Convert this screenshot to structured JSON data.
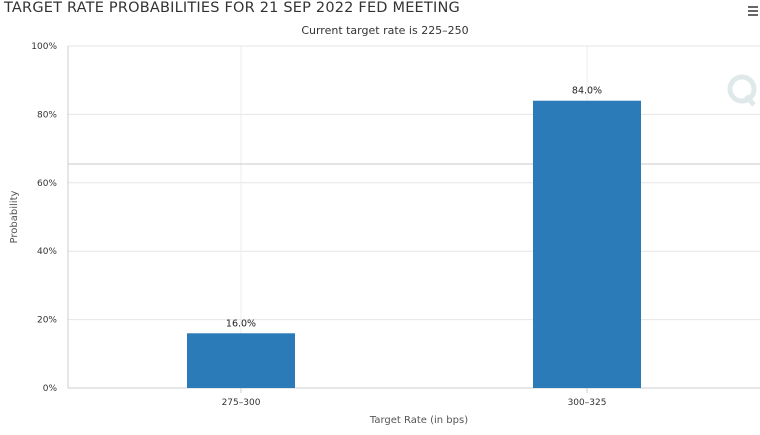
{
  "header": {
    "title": "TARGET RATE PROBABILITIES FOR 21 SEP 2022 FED MEETING",
    "subtitle": "Current target rate is 225–250"
  },
  "chart_data": {
    "type": "bar",
    "title": "TARGET RATE PROBABILITIES FOR 21 SEP 2022 FED MEETING",
    "subtitle": "Current target rate is 225–250",
    "categories": [
      "275–300",
      "300–325"
    ],
    "values": [
      16.0,
      84.0
    ],
    "data_labels": [
      "16.0%",
      "84.0%"
    ],
    "xlabel": "Target Rate (in bps)",
    "ylabel": "Probability",
    "ylim": [
      0,
      100
    ],
    "yticks": [
      "0%",
      "20%",
      "40%",
      "60%",
      "80%",
      "100%"
    ],
    "grid": true,
    "bar_color": "#2b7bb9",
    "legend": "none"
  }
}
